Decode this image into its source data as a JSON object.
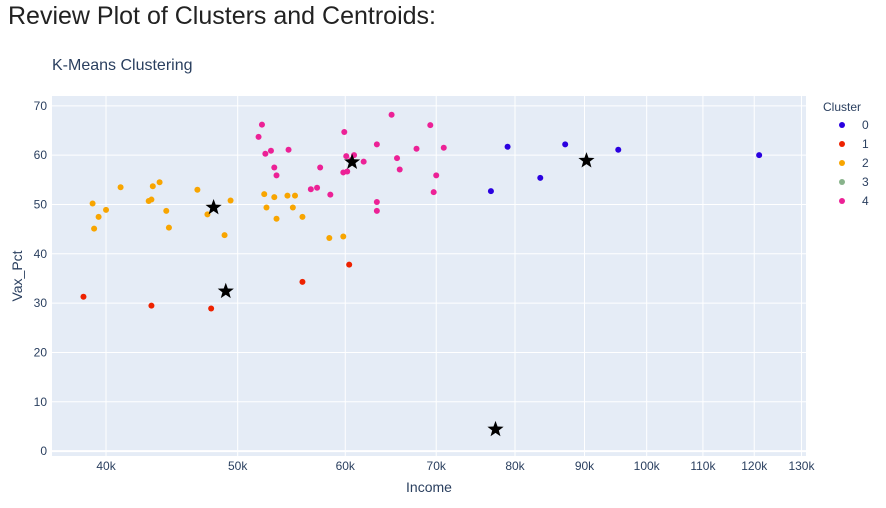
{
  "page": {
    "heading": "Review Plot of Clusters and Centroids:"
  },
  "chart_data": {
    "type": "scatter",
    "title": "K-Means Clustering",
    "xlabel": "Income",
    "ylabel": "Vax_Pct",
    "x_scale": "log",
    "xlim": [
      36500,
      131000
    ],
    "ylim": [
      -1,
      72
    ],
    "x_ticks": [
      {
        "value": 40000,
        "label": "40k"
      },
      {
        "value": 50000,
        "label": "50k"
      },
      {
        "value": 60000,
        "label": "60k"
      },
      {
        "value": 70000,
        "label": "70k"
      },
      {
        "value": 80000,
        "label": "80k"
      },
      {
        "value": 90000,
        "label": "90k"
      },
      {
        "value": 100000,
        "label": "100k"
      },
      {
        "value": 110000,
        "label": "110k"
      },
      {
        "value": 120000,
        "label": "120k"
      },
      {
        "value": 130000,
        "label": "130k"
      }
    ],
    "y_ticks": [
      {
        "value": 0,
        "label": "0"
      },
      {
        "value": 10,
        "label": "10"
      },
      {
        "value": 20,
        "label": "20"
      },
      {
        "value": 30,
        "label": "30"
      },
      {
        "value": 40,
        "label": "40"
      },
      {
        "value": 50,
        "label": "50"
      },
      {
        "value": 60,
        "label": "60"
      },
      {
        "value": 70,
        "label": "70"
      }
    ],
    "grid": true,
    "legend_title": "Cluster",
    "legend_position": "top-right",
    "series": [
      {
        "name": "0",
        "color": "#2a00e0",
        "points": [
          [
            76800,
            52.7
          ],
          [
            79000,
            61.7
          ],
          [
            83500,
            55.4
          ],
          [
            87100,
            62.2
          ],
          [
            95300,
            61.1
          ],
          [
            121000,
            60.0
          ]
        ]
      },
      {
        "name": "1",
        "color": "#ee2200",
        "points": [
          [
            38500,
            31.3
          ],
          [
            43200,
            29.5
          ],
          [
            47800,
            28.9
          ],
          [
            55800,
            34.3
          ],
          [
            60400,
            37.8
          ]
        ]
      },
      {
        "name": "2",
        "color": "#f8a500",
        "points": [
          [
            39100,
            50.2
          ],
          [
            39200,
            45.1
          ],
          [
            39500,
            47.5
          ],
          [
            40000,
            48.9
          ],
          [
            41000,
            53.5
          ],
          [
            43000,
            50.7
          ],
          [
            43200,
            51.0
          ],
          [
            43300,
            53.7
          ],
          [
            43800,
            54.5
          ],
          [
            44300,
            48.7
          ],
          [
            44500,
            45.3
          ],
          [
            46700,
            53.0
          ],
          [
            47500,
            48.0
          ],
          [
            48900,
            43.8
          ],
          [
            49400,
            50.8
          ],
          [
            52300,
            52.1
          ],
          [
            52500,
            49.4
          ],
          [
            53200,
            51.5
          ],
          [
            53400,
            47.1
          ],
          [
            54400,
            51.8
          ],
          [
            54900,
            49.4
          ],
          [
            55100,
            51.8
          ],
          [
            55800,
            47.5
          ],
          [
            58400,
            43.2
          ],
          [
            59800,
            43.5
          ]
        ]
      },
      {
        "name": "3",
        "color": "#88b38b",
        "points": []
      },
      {
        "name": "4",
        "color": "#ec2196",
        "points": [
          [
            51800,
            63.7
          ],
          [
            52100,
            66.2
          ],
          [
            52400,
            60.3
          ],
          [
            52900,
            60.9
          ],
          [
            53200,
            57.5
          ],
          [
            53400,
            55.9
          ],
          [
            54500,
            61.1
          ],
          [
            56600,
            53.1
          ],
          [
            57200,
            53.4
          ],
          [
            57500,
            57.5
          ],
          [
            58500,
            52.0
          ],
          [
            59800,
            56.5
          ],
          [
            59900,
            64.7
          ],
          [
            60100,
            59.8
          ],
          [
            60200,
            56.7
          ],
          [
            60600,
            59.0
          ],
          [
            60900,
            60.0
          ],
          [
            61900,
            58.7
          ],
          [
            63300,
            62.2
          ],
          [
            63300,
            50.5
          ],
          [
            63300,
            48.7
          ],
          [
            64900,
            68.2
          ],
          [
            65500,
            59.4
          ],
          [
            65800,
            57.1
          ],
          [
            67700,
            61.3
          ],
          [
            69300,
            66.1
          ],
          [
            69700,
            52.5
          ],
          [
            70000,
            55.9
          ],
          [
            70900,
            61.5
          ]
        ]
      }
    ],
    "centroids": {
      "symbol": "star",
      "color": "#000000",
      "points": [
        [
          90300,
          58.9
        ],
        [
          77400,
          4.4
        ],
        [
          49000,
          32.4
        ],
        [
          48000,
          49.4
        ],
        [
          60700,
          58.6
        ]
      ]
    }
  }
}
